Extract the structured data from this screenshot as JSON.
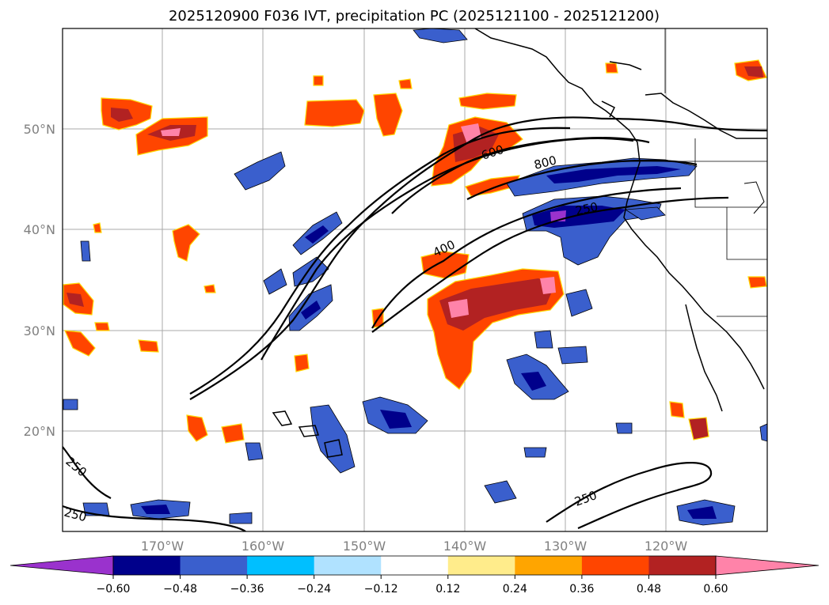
{
  "title": "2025120900 F036 IVT, precipitation PC (2025121100 - 2025121200)",
  "map": {
    "lat_labels": [
      "50°N",
      "40°N",
      "30°N",
      "20°N"
    ],
    "lon_labels": [
      "170°W",
      "160°W",
      "150°W",
      "140°W",
      "130°W",
      "120°W"
    ],
    "ivt_contour_labels": [
      "600",
      "800",
      "250",
      "400",
      "250",
      "250",
      "250"
    ],
    "colors": {
      "neg_extend": "#9a32cd",
      "positive_main": "#ff4500",
      "positive_strong": "#b22222",
      "positive_max": "#ff83a9",
      "negative_main": "#3a5fcd",
      "negative_strong": "#00008b"
    }
  },
  "colorbar": {
    "ticks": [
      "−0.60",
      "−0.48",
      "−0.36",
      "−0.24",
      "−0.12",
      "0.12",
      "0.24",
      "0.36",
      "0.48",
      "0.60"
    ],
    "colors": [
      "#00008b",
      "#3a5fcd",
      "#00bfff",
      "#b0e2ff",
      "#ffffff",
      "#ffec8b",
      "#ffa500",
      "#ff4500",
      "#b22222"
    ],
    "under_color": "#9a32cd",
    "over_color": "#ff83a9"
  }
}
